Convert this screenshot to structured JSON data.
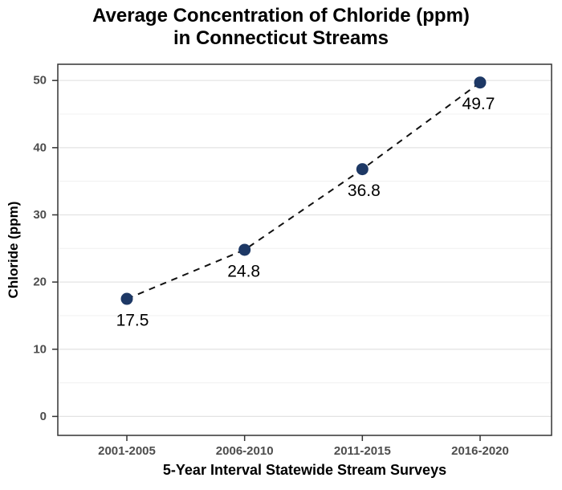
{
  "chart_data": {
    "type": "line",
    "title": "Average Concentration of Chloride (ppm)\nin Connecticut Streams",
    "xlabel": "5-Year Interval Statewide Stream Surveys",
    "ylabel": "Chloride (ppm)",
    "categories": [
      "2001-2005",
      "2006-2010",
      "2011-2015",
      "2016-2020"
    ],
    "values": [
      17.5,
      24.8,
      36.8,
      49.7
    ],
    "point_labels": [
      "17.5",
      "24.8",
      "36.8",
      "49.7"
    ],
    "ylim": [
      0,
      50
    ],
    "yticks": [
      0,
      10,
      20,
      30,
      40,
      50
    ],
    "yticks_minor": [
      5,
      15,
      25,
      35,
      45
    ],
    "grid": true,
    "legend_position": "none",
    "style": {
      "marker_color": "#1d3865",
      "line_color": "#111111",
      "line_style": "dashed",
      "grid_major_color": "#e3e3e3",
      "grid_minor_color": "#f0f0f0",
      "panel_border_color": "#333333",
      "tick_color": "#333333",
      "tick_label_color": "#4d4d4d",
      "label_color": "#000000",
      "background_color": "#ffffff"
    }
  }
}
